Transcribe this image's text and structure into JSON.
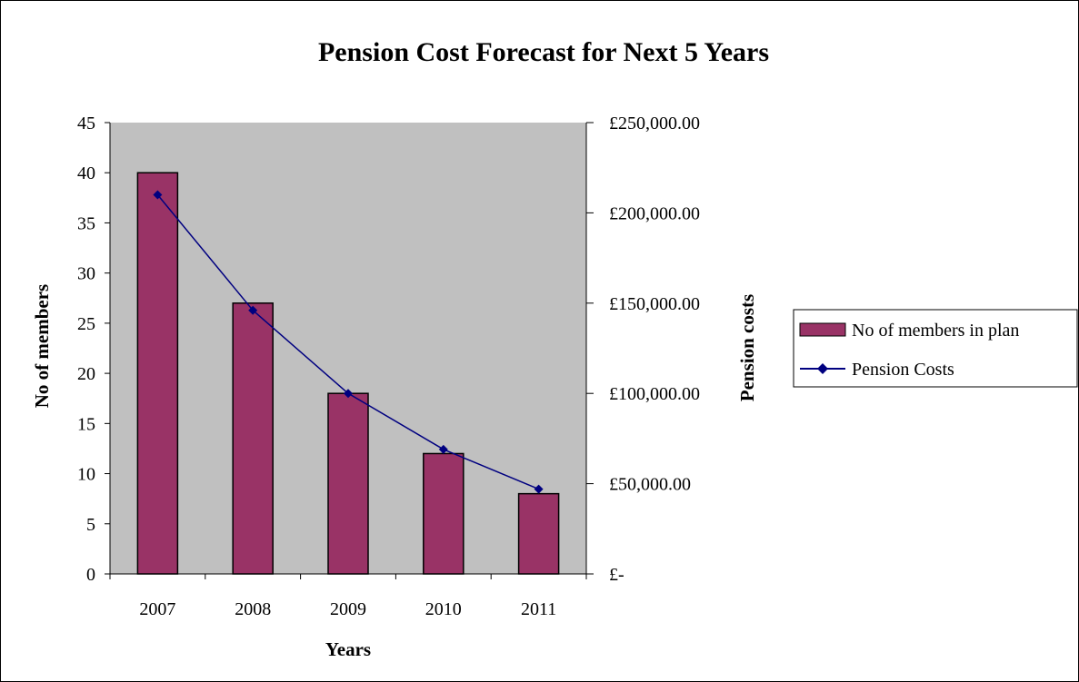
{
  "chart_data": {
    "type": "bar",
    "title": "Pension Cost Forecast for Next 5 Years",
    "categories": [
      "2007",
      "2008",
      "2009",
      "2010",
      "2011"
    ],
    "xlabel": "Years",
    "ylabel": "No of members",
    "y2label": "Pension costs",
    "ylim": [
      0,
      45
    ],
    "y_ticks": [
      0,
      5,
      10,
      15,
      20,
      25,
      30,
      35,
      40,
      45
    ],
    "y2lim": [
      0,
      250000
    ],
    "y2_ticks": [
      0,
      50000,
      100000,
      150000,
      200000,
      250000
    ],
    "y2_tick_labels": [
      "£-",
      "£50,000.00",
      "£100,000.00",
      "£150,000.00",
      "£200,000.00",
      "£250,000.00"
    ],
    "series": [
      {
        "name": "No of members in plan",
        "type": "bar",
        "axis": "left",
        "color": "#993366",
        "values": [
          40,
          27,
          18,
          12,
          8
        ]
      },
      {
        "name": "Pension Costs",
        "type": "line",
        "axis": "right",
        "color": "#000080",
        "marker": "diamond",
        "values": [
          210000,
          146000,
          100000,
          69000,
          47000
        ]
      }
    ],
    "legend_position": "right",
    "plot_background": "#c0c0c0",
    "grid": false
  }
}
